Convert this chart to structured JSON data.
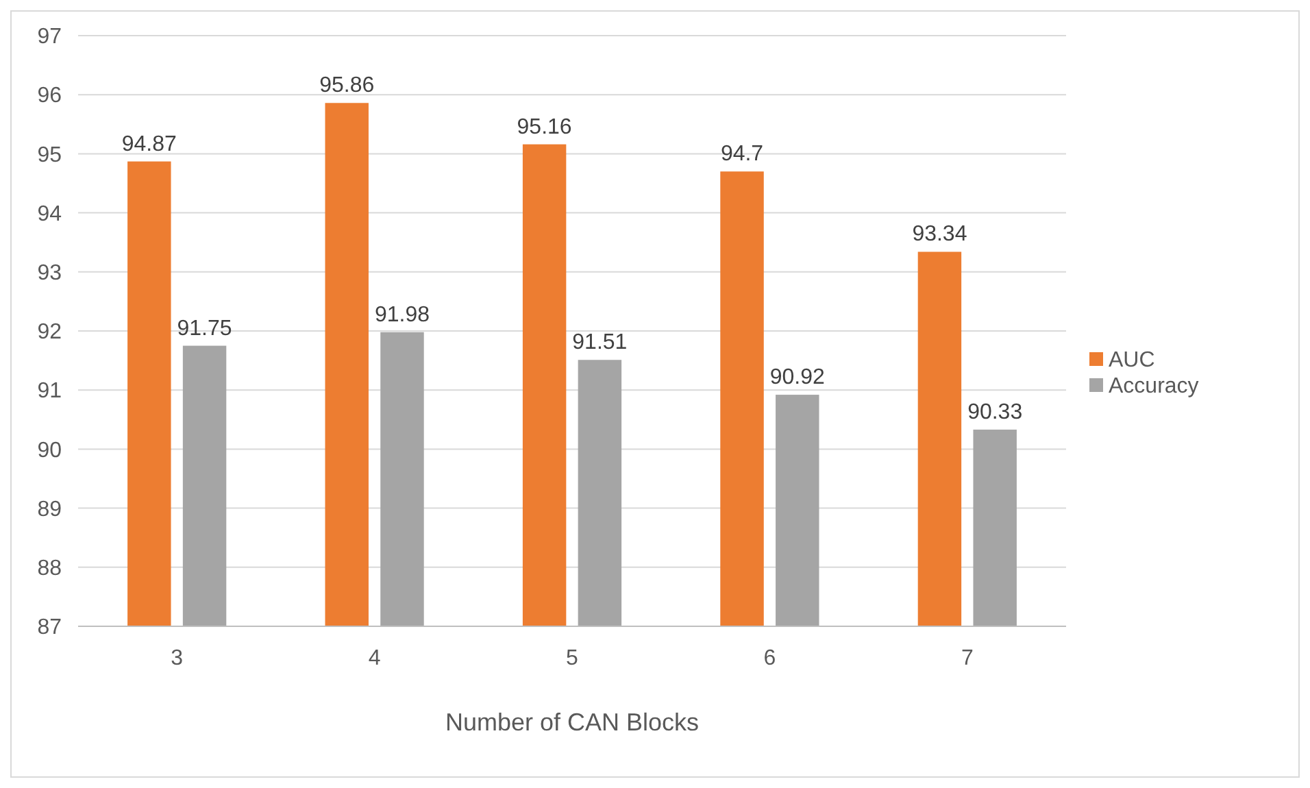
{
  "chart_data": {
    "type": "bar",
    "xlabel": "Number of CAN Blocks",
    "categories": [
      "3",
      "4",
      "5",
      "6",
      "7"
    ],
    "series": [
      {
        "name": "AUC",
        "color": "#ed7d31",
        "values": [
          94.87,
          95.86,
          95.16,
          94.7,
          93.34
        ]
      },
      {
        "name": "Accuracy",
        "color": "#a5a5a5",
        "values": [
          91.75,
          91.98,
          91.51,
          90.92,
          90.33
        ]
      }
    ],
    "ylim": [
      87,
      97
    ],
    "yticks": [
      87,
      88,
      89,
      90,
      91,
      92,
      93,
      94,
      95,
      96,
      97
    ],
    "grid": "y",
    "legend": "right",
    "data_labels": true
  }
}
